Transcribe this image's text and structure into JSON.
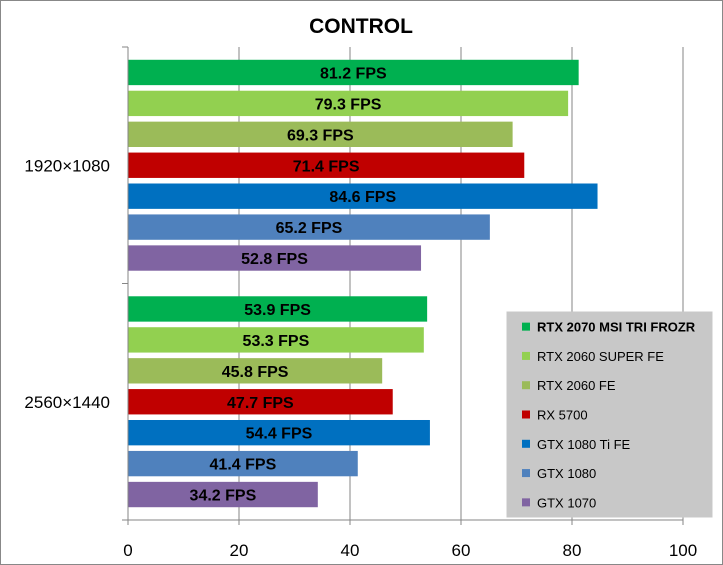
{
  "chart_data": {
    "type": "bar",
    "orientation": "horizontal",
    "title": "CONTROL",
    "xlabel": "",
    "ylabel": "",
    "xlim": [
      0,
      100
    ],
    "x_ticks": [
      "0",
      "20",
      "40",
      "60",
      "80",
      "100"
    ],
    "grid": true,
    "legend_position": "right-bottom",
    "categories": [
      "1920×1080",
      "2560×1440"
    ],
    "series": [
      {
        "name": "RTX 2070 MSI TRI FROZR",
        "color": "#00b050",
        "values": [
          81.2,
          53.9
        ],
        "labels": [
          "81.2 FPS",
          "53.9 FPS"
        ]
      },
      {
        "name": "RTX 2060 SUPER FE",
        "color": "#92d050",
        "values": [
          79.3,
          53.3
        ],
        "labels": [
          "79.3 FPS",
          "53.3 FPS"
        ]
      },
      {
        "name": "RTX 2060 FE",
        "color": "#9bbb59",
        "values": [
          69.3,
          45.8
        ],
        "labels": [
          "69.3 FPS",
          "45.8 FPS"
        ]
      },
      {
        "name": "RX 5700",
        "color": "#c00000",
        "values": [
          71.4,
          47.7
        ],
        "labels": [
          "71.4 FPS",
          "47.7 FPS"
        ]
      },
      {
        "name": "GTX 1080 Ti FE",
        "color": "#0070c0",
        "values": [
          84.6,
          54.4
        ],
        "labels": [
          "84.6 FPS",
          "54.4 FPS"
        ]
      },
      {
        "name": "GTX 1080",
        "color": "#4f81bd",
        "values": [
          65.2,
          41.4
        ],
        "labels": [
          "65.2 FPS",
          "41.4 FPS"
        ]
      },
      {
        "name": "GTX 1070",
        "color": "#8064a2",
        "values": [
          52.8,
          34.2
        ],
        "labels": [
          "52.8 FPS",
          "34.2 FPS"
        ]
      }
    ]
  }
}
